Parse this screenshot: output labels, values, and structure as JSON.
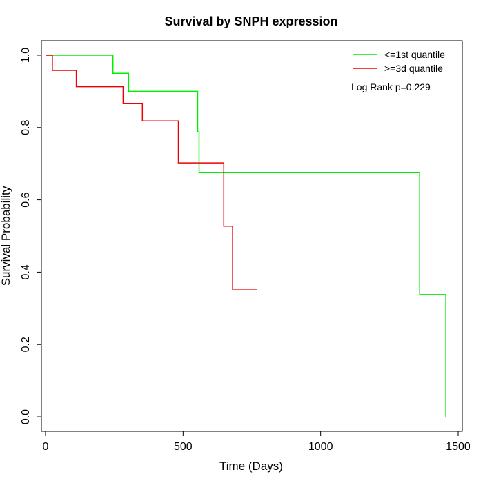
{
  "chart_data": {
    "type": "line",
    "title": "Survival by SNPH expression",
    "xlabel": "Time (Days)",
    "ylabel": "Survival Probability",
    "xlim": [
      -15,
      1515
    ],
    "ylim": [
      -0.04,
      1.04
    ],
    "x_ticks": [
      0,
      500,
      1000,
      1500
    ],
    "y_ticks": [
      0.0,
      0.2,
      0.4,
      0.6,
      0.8,
      1.0
    ],
    "x_tick_labels": [
      "0",
      "500",
      "1000",
      "1500"
    ],
    "y_tick_labels": [
      "0.0",
      "0.2",
      "0.4",
      "0.6",
      "0.8",
      "1.0"
    ],
    "grid": false,
    "legend_position": "top-right",
    "annotation": "Log Rank p=0.229",
    "series": [
      {
        "name": "<=1st quantile",
        "color": "#00ee00",
        "step": true,
        "x": [
          0,
          245,
          245,
          302,
          302,
          553,
          553,
          558,
          558,
          1360,
          1360,
          1455,
          1455
        ],
        "y": [
          1.0,
          1.0,
          0.95,
          0.95,
          0.9,
          0.9,
          0.788,
          0.788,
          0.675,
          0.675,
          0.338,
          0.338,
          0.0
        ]
      },
      {
        "name": ">=3d quantile",
        "color": "#ee0000",
        "step": true,
        "x": [
          0,
          25,
          25,
          112,
          112,
          282,
          282,
          352,
          352,
          483,
          483,
          648,
          648,
          680,
          680,
          768
        ],
        "y": [
          1.0,
          1.0,
          0.958,
          0.958,
          0.913,
          0.913,
          0.866,
          0.866,
          0.818,
          0.818,
          0.702,
          0.702,
          0.527,
          0.527,
          0.351,
          0.351
        ]
      }
    ]
  }
}
